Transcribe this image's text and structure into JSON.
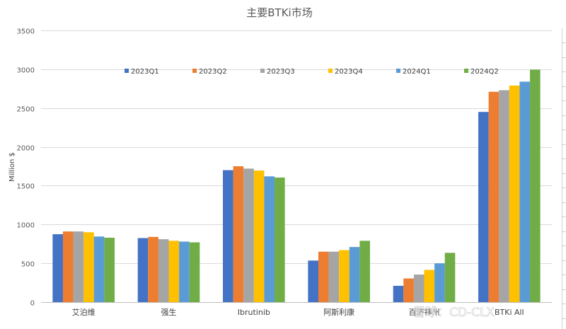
{
  "chart_data": {
    "type": "bar",
    "title": "主要BTKi市场",
    "xlabel": "",
    "ylabel": "Million $",
    "ylim": [
      0,
      3500
    ],
    "yticks": [
      0,
      500,
      1000,
      1500,
      2000,
      2500,
      3000,
      3500
    ],
    "grid": true,
    "legend_position": "top",
    "categories": [
      "艾泊维",
      "强生",
      "Ibrutinib",
      "阿斯利康",
      "百济神州",
      "BTKi All"
    ],
    "series": [
      {
        "name": "2023Q1",
        "color": "#4472C4",
        "values": [
          875,
          825,
          1700,
          535,
          210,
          2450
        ]
      },
      {
        "name": "2023Q2",
        "color": "#ED7D31",
        "values": [
          910,
          840,
          1750,
          650,
          305,
          2710
        ]
      },
      {
        "name": "2023Q3",
        "color": "#A5A5A5",
        "values": [
          910,
          810,
          1720,
          650,
          355,
          2730
        ]
      },
      {
        "name": "2023Q4",
        "color": "#FFC000",
        "values": [
          900,
          790,
          1695,
          670,
          415,
          2790
        ]
      },
      {
        "name": "2024Q1",
        "color": "#5B9BD5",
        "values": [
          845,
          780,
          1620,
          710,
          500,
          2840
        ]
      },
      {
        "name": "2024Q2",
        "color": "#70AD47",
        "values": [
          830,
          770,
          1605,
          790,
          635,
          2995
        ]
      }
    ]
  },
  "watermark": "雪球：CD-CLX"
}
